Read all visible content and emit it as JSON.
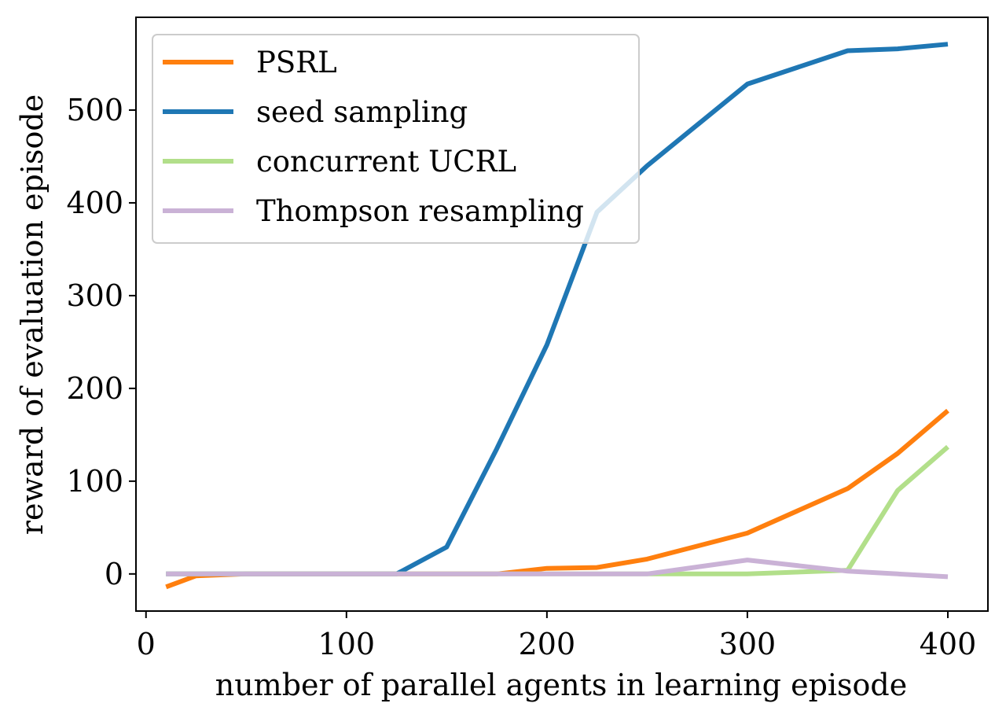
{
  "chart_data": {
    "type": "line",
    "xlabel": "number of parallel agents in learning episode",
    "ylabel": "reward of evaluation episode",
    "xlim": [
      -5,
      420
    ],
    "ylim": [
      -40,
      600
    ],
    "xticks": [
      0,
      100,
      200,
      300,
      400
    ],
    "yticks": [
      0,
      100,
      200,
      300,
      400,
      500
    ],
    "grid": false,
    "legend_position": "top-left",
    "series": [
      {
        "name": "PSRL",
        "color": "#ff7f0e",
        "x": [
          10,
          25,
          50,
          75,
          100,
          125,
          150,
          175,
          200,
          225,
          250,
          300,
          350,
          375,
          400
        ],
        "y": [
          -14,
          -2,
          0,
          0,
          0,
          0,
          0,
          0,
          6,
          7,
          16,
          44,
          92,
          130,
          176
        ]
      },
      {
        "name": "seed sampling",
        "color": "#1f77b4",
        "x": [
          10,
          25,
          50,
          75,
          100,
          125,
          150,
          175,
          200,
          225,
          250,
          300,
          350,
          375,
          400
        ],
        "y": [
          0,
          0,
          0,
          0,
          0,
          0,
          29,
          135,
          247,
          390,
          440,
          528,
          564,
          566,
          571
        ]
      },
      {
        "name": "concurrent UCRL",
        "color": "#b2df8a",
        "x": [
          10,
          25,
          50,
          75,
          100,
          125,
          150,
          175,
          200,
          225,
          250,
          300,
          350,
          375,
          400
        ],
        "y": [
          0,
          0,
          0,
          0,
          0,
          0,
          0,
          0,
          0,
          0,
          0,
          0,
          4,
          90,
          137
        ]
      },
      {
        "name": "Thompson resampling",
        "color": "#cab2d6",
        "x": [
          10,
          25,
          50,
          75,
          100,
          125,
          150,
          175,
          200,
          225,
          250,
          300,
          350,
          375,
          400
        ],
        "y": [
          0,
          0,
          0,
          0,
          0,
          0,
          0,
          0,
          0,
          0,
          0,
          15,
          3,
          0,
          -3
        ]
      }
    ]
  }
}
